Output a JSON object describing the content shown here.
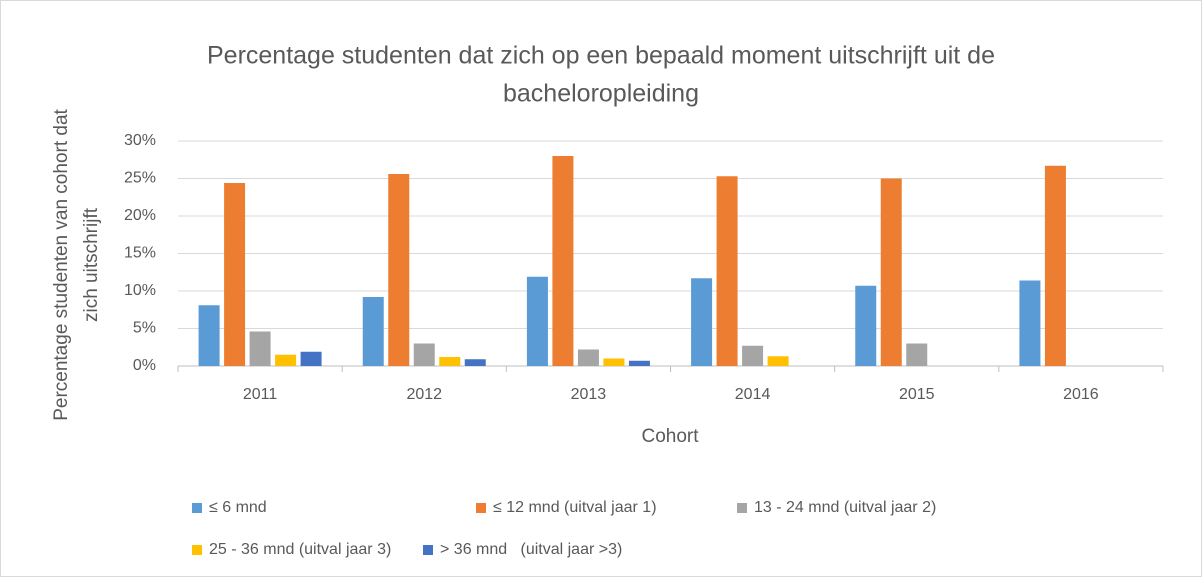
{
  "chart_data": {
    "type": "bar",
    "title": [
      "Percentage studenten dat zich op een bepaald moment uitschrijft uit de",
      "bacheloropleiding"
    ],
    "ylabel": [
      "Percentage studenten van cohort dat",
      "zich uitschrijft"
    ],
    "xlabel": "Cohort",
    "categories": [
      "2011",
      "2012",
      "2013",
      "2014",
      "2015",
      "2016"
    ],
    "series": [
      {
        "name": "≤ 6 mnd",
        "color": "#5B9BD5",
        "values": [
          8.1,
          9.2,
          11.9,
          11.7,
          10.7,
          11.4
        ]
      },
      {
        "name": "≤ 12 mnd (uitval jaar 1)",
        "color": "#ED7D31",
        "values": [
          24.4,
          25.6,
          28.0,
          25.3,
          25.0,
          26.7
        ]
      },
      {
        "name": "13 - 24 mnd (uitval jaar 2)",
        "color": "#A5A5A5",
        "values": [
          4.6,
          3.0,
          2.2,
          2.7,
          3.0,
          null
        ]
      },
      {
        "name": "25 - 36 mnd (uitval jaar 3)",
        "color": "#FFC000",
        "values": [
          1.5,
          1.2,
          1.0,
          1.3,
          null,
          null
        ]
      },
      {
        "name": "> 36 mnd   (uitval jaar >3)",
        "color": "#4472C4",
        "values": [
          1.9,
          0.9,
          0.7,
          null,
          null,
          null
        ]
      }
    ],
    "ylim": [
      0,
      30
    ],
    "yticks": [
      {
        "value": 0,
        "label": "0%"
      },
      {
        "value": 5,
        "label": "5%"
      },
      {
        "value": 10,
        "label": "10%"
      },
      {
        "value": 15,
        "label": "15%"
      },
      {
        "value": 20,
        "label": "20%"
      },
      {
        "value": 25,
        "label": "25%"
      },
      {
        "value": 30,
        "label": "30%"
      }
    ],
    "grid": true
  }
}
